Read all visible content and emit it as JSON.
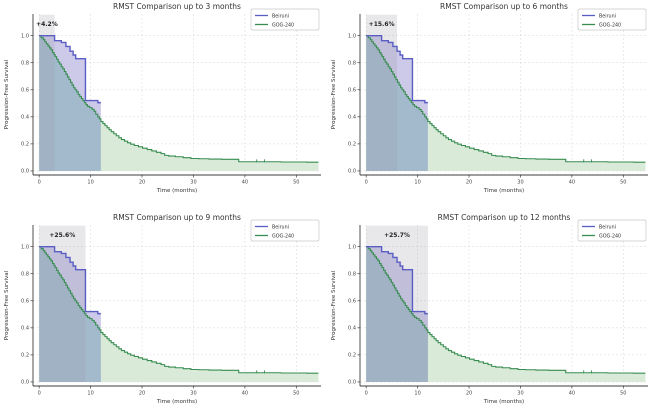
{
  "figure": {
    "background": "#ffffff",
    "rows": 2,
    "cols": 2
  },
  "axis": {
    "xlabel": "Time (months)",
    "ylabel": "Progression-Free Survival",
    "xticks": [
      0,
      10,
      20,
      30,
      40,
      50
    ],
    "ytick_labels": [
      "0.0",
      "0.2",
      "0.4",
      "0.6",
      "0.8",
      "1.0"
    ],
    "ytick_values": [
      0.0,
      0.2,
      0.4,
      0.6,
      0.8,
      1.0
    ],
    "xlim": [
      -1.2,
      54.8
    ],
    "ylim": [
      -0.03,
      1.16
    ],
    "grid": true
  },
  "legend": {
    "position": "upper-right",
    "entries": [
      {
        "label": "Beiruni",
        "color": "#5a5ec4"
      },
      {
        "label": "GOG-240",
        "color": "#378c50"
      }
    ]
  },
  "colors": {
    "beiruni_line": "#5a5ec4",
    "gog240_line": "#378c50",
    "fill_between_curves": "#cdc9e8",
    "fill_overlap": "#a3bacc",
    "fill_green_only": "#d9ead9",
    "rmst_window_band": "rgba(150,150,165,0.22)",
    "grid_line": "#dcdcdc",
    "spine": "#3c3c3c",
    "text": "#333333",
    "tick_text": "#444444"
  },
  "km_series": {
    "beiruni": {
      "name": "Beiruni",
      "end_time": 12.0,
      "points": [
        [
          0,
          1.0
        ],
        [
          3.0,
          0.963
        ],
        [
          4.3,
          0.95
        ],
        [
          5.2,
          0.92
        ],
        [
          6.0,
          0.885
        ],
        [
          6.6,
          0.857
        ],
        [
          7.1,
          0.83
        ],
        [
          9.0,
          0.52
        ],
        [
          11.4,
          0.505
        ]
      ],
      "censor_ticks": []
    },
    "gog240": {
      "name": "GOG-240",
      "end_time": 54.3,
      "points": [
        [
          0,
          1.0
        ],
        [
          0.4,
          0.985
        ],
        [
          0.8,
          0.97
        ],
        [
          1.1,
          0.955
        ],
        [
          1.4,
          0.94
        ],
        [
          1.7,
          0.925
        ],
        [
          2.0,
          0.91
        ],
        [
          2.3,
          0.895
        ],
        [
          2.6,
          0.875
        ],
        [
          2.9,
          0.86
        ],
        [
          3.1,
          0.845
        ],
        [
          3.4,
          0.825
        ],
        [
          3.7,
          0.805
        ],
        [
          4.0,
          0.79
        ],
        [
          4.3,
          0.77
        ],
        [
          4.6,
          0.755
        ],
        [
          4.9,
          0.735
        ],
        [
          5.2,
          0.715
        ],
        [
          5.5,
          0.695
        ],
        [
          5.8,
          0.675
        ],
        [
          6.1,
          0.655
        ],
        [
          6.4,
          0.635
        ],
        [
          6.7,
          0.615
        ],
        [
          7.0,
          0.6
        ],
        [
          7.3,
          0.585
        ],
        [
          7.6,
          0.565
        ],
        [
          7.9,
          0.55
        ],
        [
          8.2,
          0.535
        ],
        [
          8.5,
          0.52
        ],
        [
          8.8,
          0.505
        ],
        [
          9.1,
          0.49
        ],
        [
          9.4,
          0.478
        ],
        [
          9.8,
          0.468
        ],
        [
          10.3,
          0.455
        ],
        [
          10.7,
          0.44
        ],
        [
          11.0,
          0.42
        ],
        [
          11.4,
          0.4
        ],
        [
          11.7,
          0.385
        ],
        [
          12.0,
          0.365
        ],
        [
          12.4,
          0.35
        ],
        [
          12.8,
          0.335
        ],
        [
          13.2,
          0.32
        ],
        [
          13.6,
          0.305
        ],
        [
          14.0,
          0.29
        ],
        [
          14.5,
          0.275
        ],
        [
          15.0,
          0.26
        ],
        [
          15.5,
          0.245
        ],
        [
          16.0,
          0.232
        ],
        [
          16.6,
          0.22
        ],
        [
          17.2,
          0.208
        ],
        [
          17.8,
          0.198
        ],
        [
          18.5,
          0.188
        ],
        [
          19.3,
          0.178
        ],
        [
          20.1,
          0.168
        ],
        [
          21.0,
          0.158
        ],
        [
          21.9,
          0.148
        ],
        [
          22.8,
          0.138
        ],
        [
          23.7,
          0.128
        ],
        [
          24.4,
          0.115
        ],
        [
          25.2,
          0.11
        ],
        [
          26.5,
          0.105
        ],
        [
          28.0,
          0.098
        ],
        [
          29.5,
          0.092
        ],
        [
          31.0,
          0.09
        ],
        [
          33.0,
          0.088
        ],
        [
          35.5,
          0.086
        ],
        [
          38.8,
          0.068
        ],
        [
          47.0,
          0.066
        ],
        [
          52.0,
          0.065
        ]
      ],
      "censor_ticks": [
        42.3,
        43.8
      ]
    }
  },
  "chart_data": [
    {
      "type": "line",
      "subtype": "kaplan-meier-rmst",
      "title": "RMST Comparison up to 3 months",
      "rmst_window_months": 3,
      "rmst_gain_label": "+4.2%",
      "series_ref": [
        "beiruni",
        "gog240"
      ]
    },
    {
      "type": "line",
      "subtype": "kaplan-meier-rmst",
      "title": "RMST Comparison up to 6 months",
      "rmst_window_months": 6,
      "rmst_gain_label": "+15.6%",
      "series_ref": [
        "beiruni",
        "gog240"
      ]
    },
    {
      "type": "line",
      "subtype": "kaplan-meier-rmst",
      "title": "RMST Comparison up to 9 months",
      "rmst_window_months": 9,
      "rmst_gain_label": "+25.6%",
      "series_ref": [
        "beiruni",
        "gog240"
      ]
    },
    {
      "type": "line",
      "subtype": "kaplan-meier-rmst",
      "title": "RMST Comparison up to 12 months",
      "rmst_window_months": 12,
      "rmst_gain_label": "+25.7%",
      "series_ref": [
        "beiruni",
        "gog240"
      ]
    }
  ]
}
